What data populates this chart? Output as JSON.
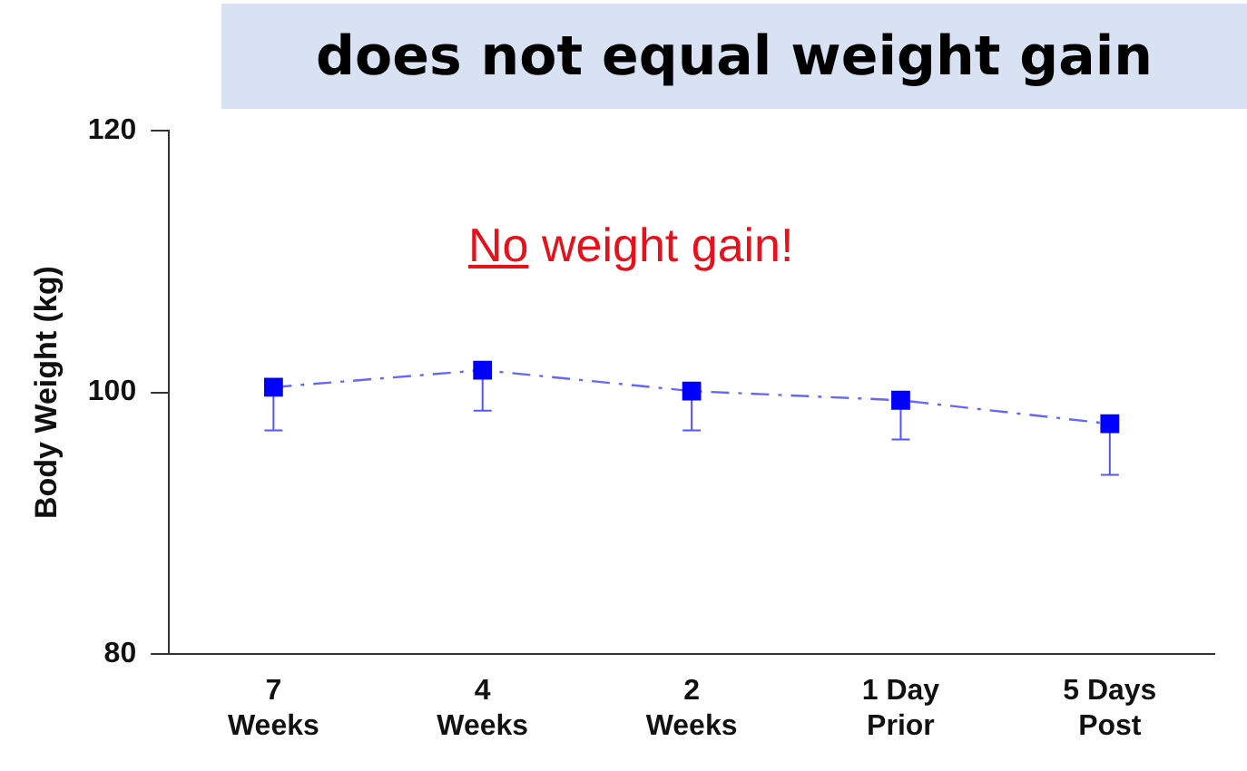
{
  "chart_data": {
    "type": "line",
    "title": "does not equal weight gain",
    "ylabel": "Body Weight (kg)",
    "categories": [
      "7\nWeeks",
      "4\nWeeks",
      "2\nWeeks",
      "1 Day\nPrior",
      "5 Days\nPost"
    ],
    "series": [
      {
        "color": "#0000ff",
        "values": [
          100.4,
          101.7,
          100.1,
          99.4,
          97.6
        ],
        "errors": [
          [
            97.1,
            100.4
          ],
          [
            98.6,
            101.7
          ],
          [
            97.1,
            100.1
          ],
          [
            96.4,
            99.4
          ],
          [
            93.7,
            97.6
          ]
        ]
      }
    ],
    "ylim": [
      80,
      120
    ],
    "yticks": [
      80,
      100,
      120
    ],
    "grid": false,
    "legend": false,
    "marker": "square",
    "line_style": "dashed",
    "annotations": [
      "No weight gain!"
    ]
  }
}
